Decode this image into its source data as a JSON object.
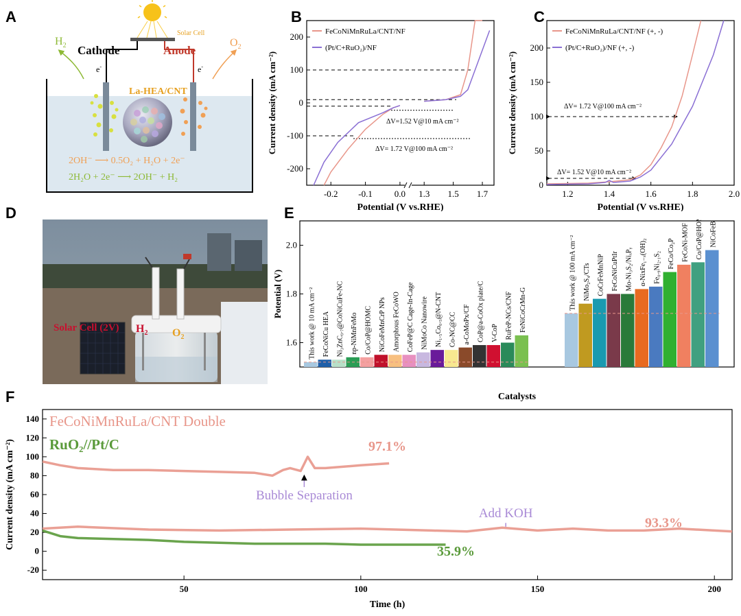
{
  "labels": {
    "A": "A",
    "B": "B",
    "C": "C",
    "D": "D",
    "E": "E",
    "F": "F"
  },
  "panelA": {
    "solar_cell": "Solar Cell",
    "cathode": "Cathode",
    "anode": "Anode",
    "h2": "H",
    "h2_sub": "2",
    "o2": "O",
    "o2_sub": "2",
    "electron": "e",
    "electron_sup": "-",
    "catalyst": "La-HEA/CNT",
    "eq1": "2OH⁻ ⟶ 0.5O₂ + H₂O + 2e⁻",
    "eq2": "2H₂O + 2e⁻ ⟶ 2OH⁻ + H₂",
    "colors": {
      "h2": "#8db935",
      "o2": "#f0a055",
      "anode": "#c0392b",
      "eq1": "#f0a055",
      "eq2": "#8db935",
      "electrolyte": "#dde8f0"
    }
  },
  "panelB": {
    "ylabel": "Current density (mA cm⁻²)",
    "xlabel": "Potential (V vs.RHE)",
    "annot1": "ΔV=1.52 V@10 mA cm⁻²",
    "annot2": "ΔV= 1.72 V@100 mA cm⁻²",
    "chart_data": {
      "type": "line",
      "x_ticks": [
        "-0.2",
        "-0.1",
        "0.0",
        "1.3",
        "1.5",
        "1.7"
      ],
      "y_ticks": [
        "-200",
        "-100",
        "0",
        "100",
        "200"
      ],
      "ylim": [
        -250,
        250
      ],
      "series": [
        {
          "name": "FeCoNiMnRuLa/CNT/NF",
          "color": "#e8968a",
          "x": [
            -0.22,
            -0.2,
            -0.15,
            -0.1,
            -0.05,
            -0.02,
            0.0,
            1.3,
            1.45,
            1.55,
            1.6,
            1.65,
            1.7
          ],
          "y": [
            -250,
            -210,
            -140,
            -80,
            -35,
            -15,
            -8,
            5,
            10,
            25,
            100,
            250,
            250
          ]
        },
        {
          "name": "(Pt/C+RuO₂)/NF",
          "color": "#8a6fd4",
          "x": [
            -0.25,
            -0.22,
            -0.18,
            -0.12,
            -0.05,
            -0.02,
            0.0,
            1.3,
            1.45,
            1.55,
            1.6,
            1.65,
            1.75
          ],
          "y": [
            -250,
            -180,
            -120,
            -60,
            -30,
            -15,
            -8,
            5,
            10,
            20,
            40,
            100,
            220
          ]
        }
      ]
    }
  },
  "panelC": {
    "ylabel": "Current density (mA cm⁻²)",
    "xlabel": "Potential (V vs.RHE)",
    "annot1": "ΔV= 1.72 V@100 mA cm⁻²",
    "annot2": "ΔV= 1.52 V@10 mA cm⁻²",
    "chart_data": {
      "type": "line",
      "x_ticks": [
        "1.2",
        "1.4",
        "1.6",
        "1.8",
        "2.0"
      ],
      "xlim": [
        1.1,
        2.0
      ],
      "y_ticks": [
        "0",
        "50",
        "100",
        "150",
        "200"
      ],
      "ylim": [
        0,
        240
      ],
      "series": [
        {
          "name": "FeCoNiMnRuLa/CNT/NF (+, -)",
          "color": "#e8968a",
          "x": [
            1.1,
            1.3,
            1.4,
            1.5,
            1.55,
            1.6,
            1.65,
            1.7,
            1.75,
            1.8,
            1.84
          ],
          "y": [
            2,
            3,
            5,
            8,
            15,
            30,
            55,
            85,
            130,
            190,
            240
          ]
        },
        {
          "name": "(Pt/C+RuO₂)/NF (+, -)",
          "color": "#8a6fd4",
          "x": [
            1.1,
            1.3,
            1.38,
            1.4,
            1.42,
            1.5,
            1.55,
            1.6,
            1.7,
            1.8,
            1.9,
            1.95
          ],
          "y": [
            1,
            2,
            4,
            7,
            4,
            6,
            12,
            22,
            60,
            115,
            190,
            240
          ]
        }
      ]
    }
  },
  "panelD": {
    "solar_cell": "Solar Cell (2V)",
    "h2": "H",
    "h2_sub": "2",
    "o2": "O",
    "o2_sub": "2"
  },
  "panelE": {
    "ylabel": "Potential (V)",
    "xlabel": "Catalysts",
    "chart_data": {
      "type": "bar",
      "y_ticks": [
        "1.6",
        "1.8",
        "2.0"
      ],
      "ylim": [
        1.5,
        2.1
      ],
      "group1_title": "This work @ 10 mA cm⁻²",
      "group2_title": "This work @ 100 mA cm⁻²",
      "group1": [
        {
          "name": "This work @ 10 mA cm⁻²",
          "value": 1.52,
          "color": "#a8c8e0"
        },
        {
          "name": "FeCoNiCu HEA",
          "value": 1.53,
          "color": "#1f5fa8"
        },
        {
          "name": "Ni₃ZnC₀.₇@CoNiCuFe-NC",
          "value": 1.53,
          "color": "#b8e0c8"
        },
        {
          "name": "np-NiMnFeMo",
          "value": 1.54,
          "color": "#2a9d55"
        },
        {
          "name": "Co/CoP@HOMC",
          "value": 1.54,
          "color": "#f4a0a0"
        },
        {
          "name": "NiCoFeMnCrP NPs",
          "value": 1.55,
          "color": "#c0102a"
        },
        {
          "name": "Amorphous FeCoWO",
          "value": 1.55,
          "color": "#f8c080"
        },
        {
          "name": "CoFeP@C Cage-In-Cage",
          "value": 1.55,
          "color": "#e890c0"
        },
        {
          "name": "NiMoCo Nanowire",
          "value": 1.56,
          "color": "#c8b8e0"
        },
        {
          "name": "Ni₁.₅Co₀.₅@N-CNT",
          "value": 1.57,
          "color": "#6a1b9a"
        },
        {
          "name": "Co-NC@CC",
          "value": 1.57,
          "color": "#f8e890"
        },
        {
          "name": "a-CoMoPx/CF",
          "value": 1.58,
          "color": "#8a4a2a"
        },
        {
          "name": "CoP@a-CoOx plate/C",
          "value": 1.59,
          "color": "#333333"
        },
        {
          "name": "V-CoP",
          "value": 1.59,
          "color": "#d01030"
        },
        {
          "name": "RuFeP-NCs/CNF",
          "value": 1.6,
          "color": "#2a8a5a"
        },
        {
          "name": "FeNiCoCrMn-G",
          "value": 1.63,
          "color": "#7ac050"
        }
      ],
      "group2": [
        {
          "name": "This work @ 100 mA cm⁻²",
          "value": 1.72,
          "color": "#a8c8e0"
        },
        {
          "name": "NiMo₂S₄/CTs",
          "value": 1.76,
          "color": "#c09a20"
        },
        {
          "name": "CoCrFeMnNiP",
          "value": 1.78,
          "color": "#1a9ab0"
        },
        {
          "name": "FeCoNiCuPtIr",
          "value": 1.8,
          "color": "#7a3a4a"
        },
        {
          "name": "Mo-Ni₃S₂/NiₓPᵧ",
          "value": 1.8,
          "color": "#2a7a3a"
        },
        {
          "name": "α-NixFe₁₋ₓ(OH)₂",
          "value": 1.82,
          "color": "#e86a20"
        },
        {
          "name": "Fe₀.₉Ni₂.₁S₂",
          "value": 1.83,
          "color": "#4a7ac0"
        },
        {
          "name": "FeCo/Co₂P",
          "value": 1.89,
          "color": "#30b030"
        },
        {
          "name": "FeCoNi-MOF",
          "value": 1.92,
          "color": "#f08060"
        },
        {
          "name": "Co/CoP@HOMC",
          "value": 1.93,
          "color": "#40a080"
        },
        {
          "name": "NiCoFeB",
          "value": 1.98,
          "color": "#5a90d0"
        }
      ]
    }
  },
  "panelF": {
    "ylabel": "Current density (mA cm⁻²)",
    "xlabel": "Time (h)",
    "legend1": "FeCoNiMnRuLa/CNT Double",
    "legend2": "RuO₂//Pt/C",
    "pct_upper": "97.1%",
    "pct_lower_right": "93.3%",
    "pct_green": "35.9%",
    "annot_bubble": "Bubble Separation",
    "annot_koh": "Add KOH",
    "chart_data": {
      "type": "line",
      "x_ticks": [
        "50",
        "100",
        "150",
        "200"
      ],
      "xlim": [
        10,
        205
      ],
      "y_ticks": [
        "-20",
        "0",
        "20",
        "40",
        "60",
        "80",
        "100",
        "120",
        "140"
      ],
      "ylim": [
        -30,
        150
      ],
      "series": [
        {
          "name": "FeCoNiMnRuLa/CNT Double (upper)",
          "color": "#e8968a",
          "x": [
            10,
            15,
            20,
            30,
            40,
            50,
            60,
            70,
            75,
            78,
            80,
            83,
            85,
            87,
            90,
            100,
            108
          ],
          "y": [
            95,
            91,
            88,
            86,
            86,
            85,
            84,
            83,
            80,
            86,
            88,
            85,
            100,
            88,
            88,
            91,
            93
          ]
        },
        {
          "name": "FeCoNiMnRuLa/CNT Double (lower)",
          "color": "#e8968a",
          "x": [
            10,
            20,
            40,
            60,
            80,
            100,
            120,
            130,
            140,
            150,
            160,
            170,
            180,
            190,
            200,
            205
          ],
          "y": [
            24,
            26,
            23,
            22,
            23,
            24,
            22,
            21,
            25,
            22,
            24,
            22,
            22,
            24,
            22,
            21
          ]
        },
        {
          "name": "RuO₂//Pt/C",
          "color": "#5a9a3a",
          "x": [
            10,
            15,
            20,
            30,
            40,
            50,
            60,
            70,
            80,
            90,
            100,
            110,
            118,
            124
          ],
          "y": [
            22,
            16,
            14,
            13,
            12,
            10,
            9,
            8,
            8,
            8,
            7,
            7,
            7,
            7
          ]
        }
      ]
    }
  }
}
